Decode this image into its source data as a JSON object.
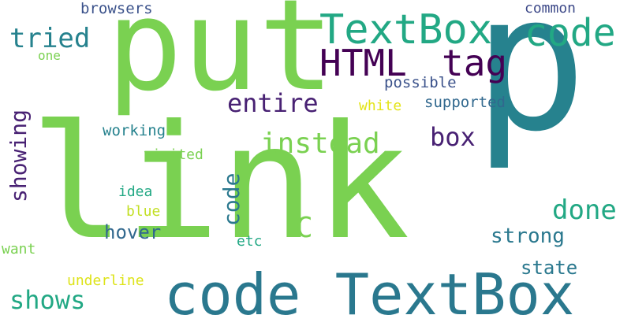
{
  "words": [
    {
      "text": "link",
      "color": "#7ad151",
      "orientation": "horizontal"
    },
    {
      "text": "p",
      "color": "#26828e",
      "orientation": "horizontal"
    },
    {
      "text": "put",
      "color": "#7ad151",
      "orientation": "horizontal"
    },
    {
      "text": "code TextBox",
      "color": "#2a788e",
      "orientation": "horizontal"
    },
    {
      "text": "TextBox",
      "color": "#22a884",
      "orientation": "horizontal"
    },
    {
      "text": "code",
      "color": "#22a884",
      "orientation": "horizontal"
    },
    {
      "text": "HTML",
      "color": "#440154",
      "orientation": "horizontal"
    },
    {
      "text": "tag",
      "color": "#440154",
      "orientation": "horizontal"
    },
    {
      "text": "entire",
      "color": "#482173",
      "orientation": "horizontal"
    },
    {
      "text": "instead",
      "color": "#7ad151",
      "orientation": "horizontal"
    },
    {
      "text": "box",
      "color": "#482173",
      "orientation": "horizontal"
    },
    {
      "text": "tried",
      "color": "#26828e",
      "orientation": "horizontal"
    },
    {
      "text": "showing",
      "color": "#482173",
      "orientation": "vertical"
    },
    {
      "text": "code",
      "color": "#2a788e",
      "orientation": "vertical"
    },
    {
      "text": "C",
      "color": "#7ad151",
      "orientation": "horizontal"
    },
    {
      "text": "done",
      "color": "#22a884",
      "orientation": "horizontal"
    },
    {
      "text": "strong",
      "color": "#2a788e",
      "orientation": "horizontal"
    },
    {
      "text": "shows",
      "color": "#22a884",
      "orientation": "horizontal"
    },
    {
      "text": "hover",
      "color": "#31688e",
      "orientation": "horizontal"
    },
    {
      "text": "state",
      "color": "#2a788e",
      "orientation": "horizontal"
    },
    {
      "text": "browsers",
      "color": "#3b528b",
      "orientation": "horizontal"
    },
    {
      "text": "common",
      "color": "#3e4a89",
      "orientation": "horizontal"
    },
    {
      "text": "one",
      "color": "#7ad151",
      "orientation": "horizontal"
    },
    {
      "text": "possible",
      "color": "#3b528b",
      "orientation": "horizontal"
    },
    {
      "text": "white",
      "color": "#e3e418",
      "orientation": "horizontal"
    },
    {
      "text": "supported",
      "color": "#31688e",
      "orientation": "horizontal"
    },
    {
      "text": "working",
      "color": "#26828e",
      "orientation": "horizontal"
    },
    {
      "text": "visited",
      "color": "#7ad151",
      "orientation": "horizontal"
    },
    {
      "text": "idea",
      "color": "#22a884",
      "orientation": "horizontal"
    },
    {
      "text": "blue",
      "color": "#c2df23",
      "orientation": "horizontal"
    },
    {
      "text": "want",
      "color": "#7ad151",
      "orientation": "horizontal"
    },
    {
      "text": "etc",
      "color": "#22a884",
      "orientation": "horizontal"
    },
    {
      "text": "underline",
      "color": "#dde318",
      "orientation": "horizontal"
    }
  ]
}
